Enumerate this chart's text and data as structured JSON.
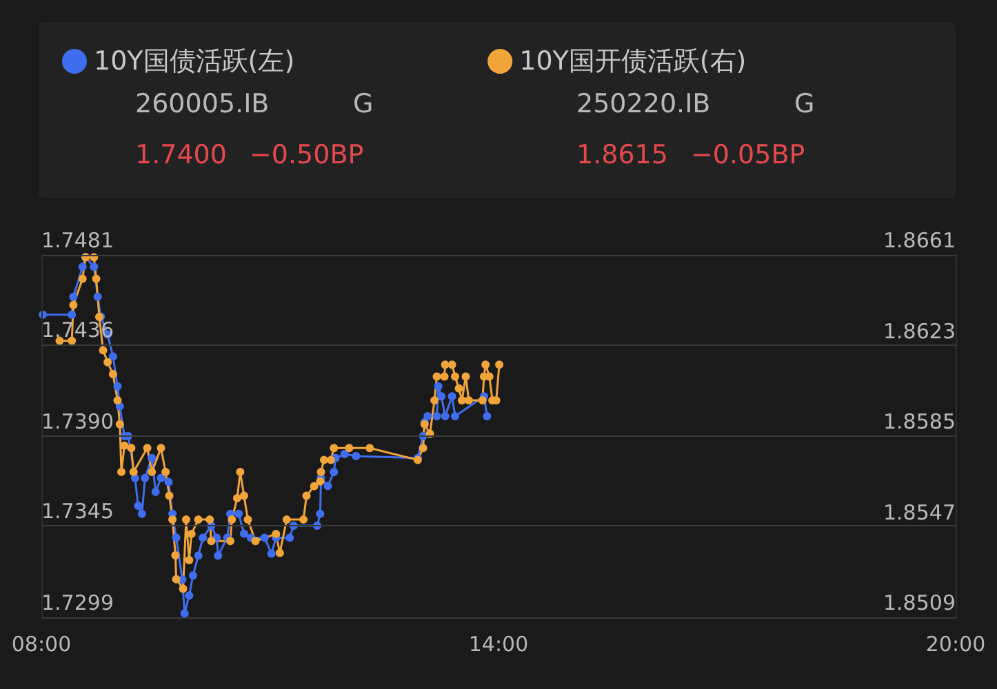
{
  "chart_data": {
    "type": "line",
    "annotations": [
      "260005.IB",
      "G",
      "1.7400",
      "−0.50BP",
      "250220.IB",
      "G",
      "1.8615",
      "−0.05BP"
    ],
    "xlim": [
      8,
      20
    ],
    "xticks": [
      {
        "value": 8,
        "label": "08:00"
      },
      {
        "value": 14,
        "label": "14:00"
      },
      {
        "value": 20,
        "label": "20:00"
      }
    ],
    "ylim": [
      1.7299,
      1.7481
    ],
    "yticks": [
      1.7299,
      1.7345,
      {
        "value": 1.739,
        "label": "1.7390"
      },
      1.7436,
      1.7481
    ],
    "y2lim": [
      1.8509,
      1.8661
    ],
    "y2ticks": [
      1.8509,
      1.8547,
      1.8585,
      1.8623,
      1.8661
    ],
    "grid": "y",
    "legend": "top left",
    "marker": "circle",
    "line_style": "solid",
    "series": [
      {
        "name": "10Y国债活跃(左)",
        "color": "#3e6df0",
        "x": [
          8.02,
          8.4,
          8.42,
          8.54,
          8.58,
          8.69,
          8.74,
          8.78,
          8.87,
          8.94,
          9.0,
          9.03,
          9.09,
          9.14,
          9.23,
          9.27,
          9.32,
          9.36,
          9.45,
          9.5,
          9.57,
          9.67,
          9.72,
          9.77,
          9.85,
          9.88,
          9.94,
          9.99,
          10.06,
          10.12,
          10.23,
          10.3,
          10.32,
          10.44,
          10.48,
          10.59,
          10.66,
          10.75,
          10.93,
          11.02,
          11.08,
          11.26,
          11.31,
          11.62,
          11.66,
          11.67,
          11.76,
          11.84,
          11.86,
          11.98,
          12.13,
          12.94,
          13.01,
          13.03,
          13.07,
          13.19,
          13.21,
          13.25,
          13.3,
          13.39,
          13.43,
          13.81,
          13.85
        ],
        "values": [
          1.7451,
          1.7451,
          1.746,
          1.7475,
          1.748,
          1.7475,
          1.746,
          1.745,
          1.7441,
          1.743,
          1.7415,
          1.7405,
          1.739,
          1.739,
          1.7369,
          1.7355,
          1.7351,
          1.7369,
          1.7379,
          1.7362,
          1.7369,
          1.7367,
          1.7351,
          1.7339,
          1.7318,
          1.7301,
          1.731,
          1.732,
          1.733,
          1.7339,
          1.7345,
          1.7339,
          1.733,
          1.7339,
          1.7351,
          1.7351,
          1.7341,
          1.7339,
          1.7339,
          1.7331,
          1.7339,
          1.7339,
          1.7345,
          1.7345,
          1.7351,
          1.7369,
          1.7365,
          1.7372,
          1.7379,
          1.7381,
          1.738,
          1.7379,
          1.739,
          1.7397,
          1.74,
          1.74,
          1.7415,
          1.741,
          1.74,
          1.741,
          1.74,
          1.741,
          1.74
        ]
      },
      {
        "name": "10Y国开债活跃(右)",
        "color": "#f0a43a",
        "axis": "y2",
        "x": [
          8.24,
          8.4,
          8.42,
          8.54,
          8.58,
          8.69,
          8.72,
          8.76,
          8.81,
          8.87,
          8.94,
          9.0,
          9.03,
          9.05,
          9.09,
          9.18,
          9.21,
          9.39,
          9.45,
          9.57,
          9.63,
          9.68,
          9.72,
          9.76,
          9.77,
          9.86,
          9.9,
          9.94,
          9.97,
          10.06,
          10.21,
          10.23,
          10.48,
          10.5,
          10.57,
          10.61,
          10.66,
          10.71,
          10.81,
          11.08,
          11.13,
          11.22,
          11.44,
          11.48,
          11.58,
          11.66,
          11.67,
          11.71,
          11.8,
          11.84,
          12.04,
          12.31,
          12.94,
          13.01,
          13.03,
          13.1,
          13.16,
          13.19,
          13.29,
          13.3,
          13.39,
          13.43,
          13.48,
          13.52,
          13.57,
          13.61,
          13.79,
          13.81,
          13.83,
          13.88,
          13.92,
          13.97,
          14.01
        ],
        "values": [
          1.8625,
          1.8625,
          1.864,
          1.8651,
          1.866,
          1.866,
          1.8651,
          1.8635,
          1.8621,
          1.8616,
          1.8611,
          1.86,
          1.859,
          1.857,
          1.8581,
          1.858,
          1.857,
          1.858,
          1.857,
          1.858,
          1.857,
          1.856,
          1.855,
          1.8535,
          1.8525,
          1.8521,
          1.855,
          1.8533,
          1.8544,
          1.855,
          1.855,
          1.8541,
          1.8541,
          1.855,
          1.8559,
          1.857,
          1.856,
          1.855,
          1.8541,
          1.8544,
          1.8536,
          1.855,
          1.855,
          1.856,
          1.8564,
          1.8566,
          1.857,
          1.8575,
          1.8575,
          1.858,
          1.858,
          1.858,
          1.8575,
          1.858,
          1.859,
          1.8586,
          1.86,
          1.861,
          1.861,
          1.8615,
          1.8615,
          1.861,
          1.8605,
          1.86,
          1.861,
          1.86,
          1.86,
          1.861,
          1.8615,
          1.861,
          1.86,
          1.86,
          1.8615
        ]
      }
    ]
  }
}
